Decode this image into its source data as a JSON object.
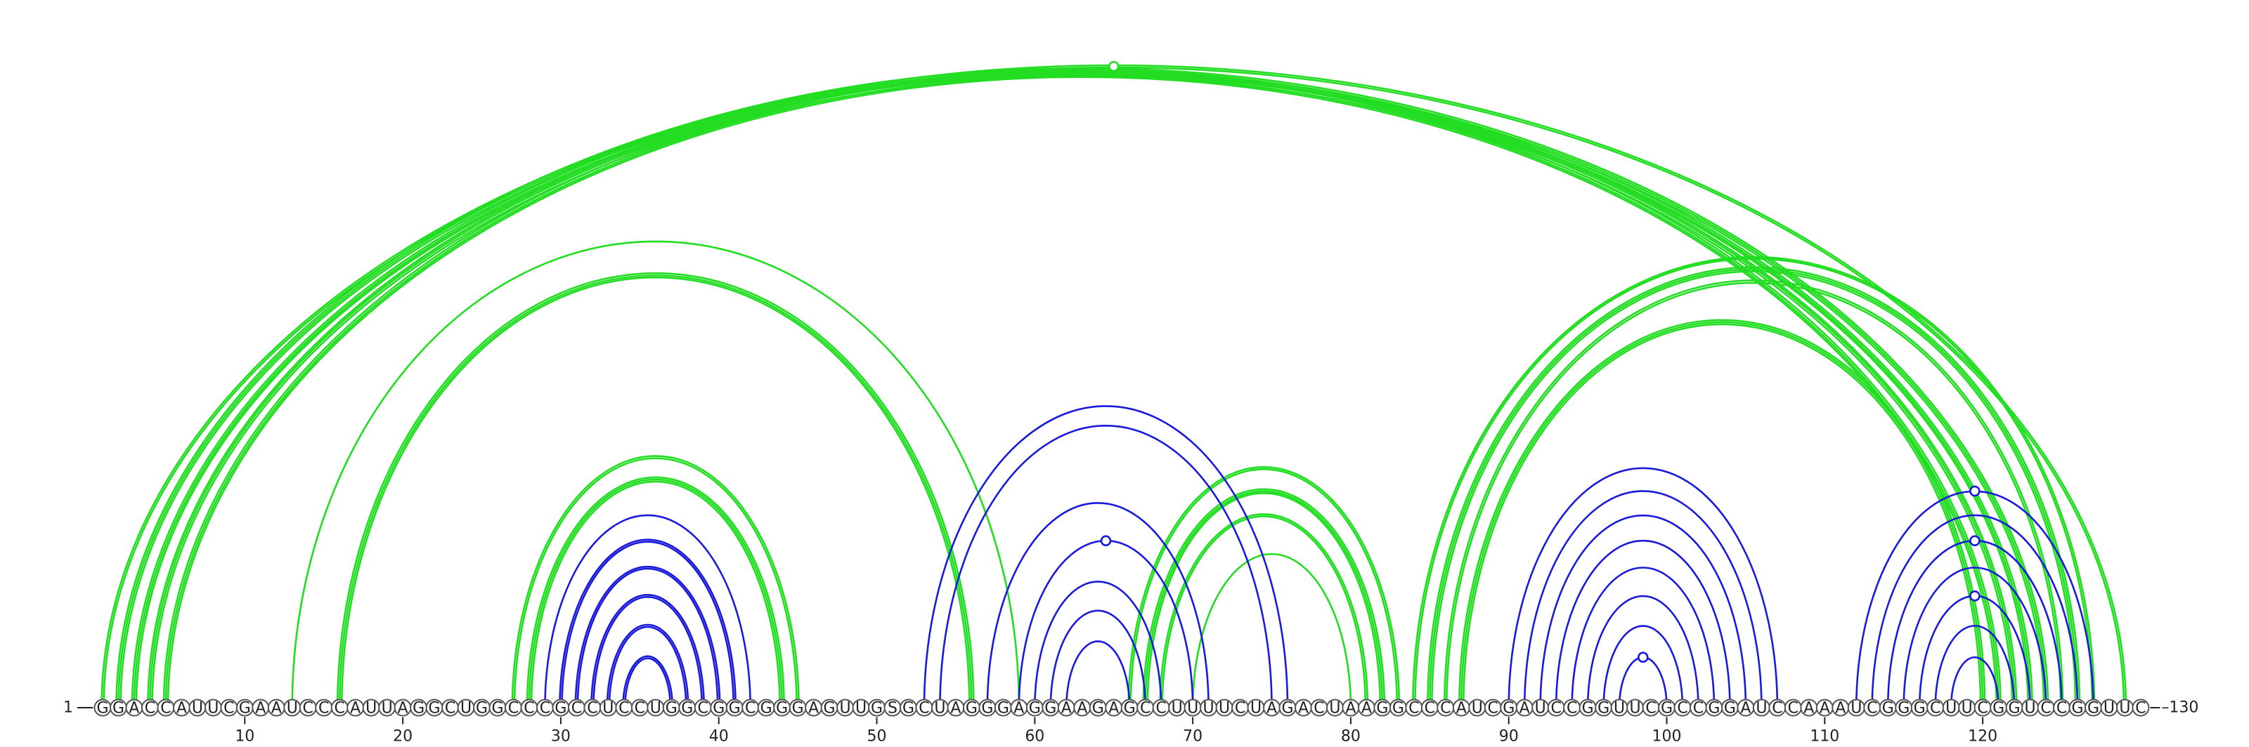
{
  "sequence": "GGACCAUUCGAAUCCCAUUAGGCUGGCCCGCCUCCUGGCGGCGGGAGUUGSGCUAGGGAGGAAGAGCCUUUUCUAGACUAAGGCCCAUCGAUCCGGUUCGCCGGAUCCAAAUCGGGCUUCGGUCCGGUUC",
  "start_label": "1",
  "end_label": "130",
  "ticks": [
    "10",
    "20",
    "30",
    "40",
    "50",
    "60",
    "70",
    "80",
    "90",
    "100",
    "110",
    "120"
  ],
  "colors": {
    "green": "#22dd22",
    "blue": "#1a1adb"
  },
  "chart_data": {
    "type": "arc-diagram",
    "length": 130,
    "green_arcs": [
      [
        1,
        129,
        2
      ],
      [
        2,
        124,
        3
      ],
      [
        3,
        123,
        3
      ],
      [
        4,
        122,
        3
      ],
      [
        5,
        121,
        3
      ],
      [
        13,
        59,
        1
      ],
      [
        16,
        56,
        3
      ],
      [
        27,
        45,
        2
      ],
      [
        28,
        44,
        3
      ],
      [
        66,
        83,
        2
      ],
      [
        67,
        82,
        3
      ],
      [
        68,
        81,
        2
      ],
      [
        70,
        80,
        1
      ],
      [
        84,
        127,
        2
      ],
      [
        85,
        126,
        3
      ],
      [
        86,
        125,
        2
      ],
      [
        87,
        120,
        3
      ]
    ],
    "blue_arcs": [
      [
        29,
        42,
        1
      ],
      [
        30,
        41,
        2
      ],
      [
        31,
        40,
        2
      ],
      [
        32,
        39,
        2
      ],
      [
        33,
        38,
        2
      ],
      [
        34,
        37,
        2
      ],
      [
        53,
        76,
        1
      ],
      [
        54,
        75,
        1
      ],
      [
        57,
        71,
        1
      ],
      [
        59,
        70,
        1
      ],
      [
        60,
        68,
        1
      ],
      [
        61,
        67,
        1
      ],
      [
        62,
        66,
        1
      ],
      [
        90,
        107,
        1
      ],
      [
        91,
        106,
        1
      ],
      [
        92,
        105,
        1
      ],
      [
        93,
        104,
        1
      ],
      [
        94,
        103,
        1
      ],
      [
        95,
        102,
        1
      ],
      [
        96,
        101,
        1
      ],
      [
        97,
        100,
        1
      ],
      [
        112,
        127,
        1
      ],
      [
        113,
        126,
        1
      ],
      [
        114,
        125,
        1
      ],
      [
        115,
        124,
        1
      ],
      [
        116,
        123,
        1
      ],
      [
        117,
        122,
        1
      ],
      [
        118,
        121,
        1
      ]
    ],
    "arc_markers": [
      {
        "color": "green",
        "i": 1,
        "j": 129
      },
      {
        "color": "blue",
        "i": 59,
        "j": 70
      },
      {
        "color": "blue",
        "i": 112,
        "j": 127
      },
      {
        "color": "blue",
        "i": 114,
        "j": 125
      },
      {
        "color": "blue",
        "i": 116,
        "j": 123
      },
      {
        "color": "blue",
        "i": 97,
        "j": 100
      }
    ]
  }
}
